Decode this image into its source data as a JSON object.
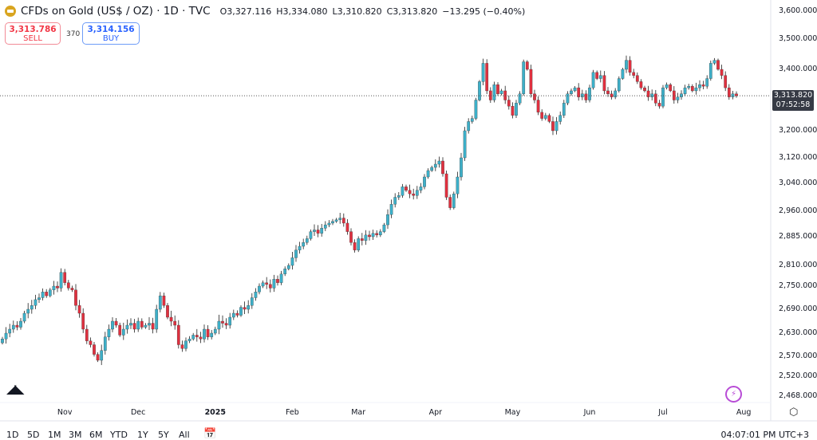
{
  "header": {
    "title": "CFDs on Gold (US$ / OZ) · 1D · TVC",
    "open": "O3,327.116",
    "high": "H3,334.080",
    "low": "L3,310.820",
    "close": "C3,313.820",
    "change": "−13.295 (−0.40%)"
  },
  "trade": {
    "sell_price": "3,313.786",
    "sell_label": "SELL",
    "spread": "370",
    "buy_price": "3,314.156",
    "buy_label": "BUY"
  },
  "current": {
    "price": "3,313.820",
    "countdown": "07:52:58"
  },
  "ranges": [
    "1D",
    "5D",
    "1M",
    "3M",
    "6M",
    "YTD",
    "1Y",
    "5Y",
    "All"
  ],
  "clock": "04:07:01 PM UTC+3",
  "logo_text": "TV",
  "colors": {
    "up": "#3db0c9",
    "down": "#e0303f"
  },
  "chart_data": {
    "type": "candlestick",
    "title": "CFDs on Gold (US$ / OZ) · 1D · TVC",
    "yticks": [
      "3,600.000",
      "3,500.000",
      "3,400.000",
      "3,200.000",
      "3,120.000",
      "3,040.000",
      "2,960.000",
      "2,885.000",
      "2,810.000",
      "2,750.000",
      "2,690.000",
      "2,630.000",
      "2,570.000",
      "2,520.000",
      "2,468.000"
    ],
    "ytick_values": [
      3600,
      3500,
      3400,
      3200,
      3120,
      3040,
      2960,
      2885,
      2810,
      2750,
      2690,
      2630,
      2570,
      2520,
      2468
    ],
    "xticks": [
      "Nov",
      "Dec",
      "2025",
      "Feb",
      "Mar",
      "Apr",
      "May",
      "Jun",
      "Jul",
      "Aug"
    ],
    "xtick_index": [
      17,
      37,
      58,
      79,
      97,
      118,
      139,
      160,
      180,
      202
    ],
    "first_open": 2605,
    "closes": [
      2615,
      2630,
      2640,
      2650,
      2645,
      2660,
      2680,
      2690,
      2700,
      2715,
      2720,
      2735,
      2725,
      2740,
      2750,
      2745,
      2790,
      2760,
      2745,
      2740,
      2700,
      2680,
      2640,
      2610,
      2600,
      2575,
      2560,
      2585,
      2620,
      2640,
      2660,
      2650,
      2625,
      2640,
      2650,
      2655,
      2640,
      2660,
      2645,
      2650,
      2655,
      2640,
      2690,
      2725,
      2700,
      2670,
      2660,
      2650,
      2600,
      2590,
      2610,
      2615,
      2625,
      2620,
      2615,
      2640,
      2620,
      2630,
      2640,
      2660,
      2655,
      2650,
      2670,
      2680,
      2675,
      2695,
      2690,
      2700,
      2720,
      2735,
      2750,
      2760,
      2755,
      2745,
      2770,
      2760,
      2785,
      2800,
      2810,
      2830,
      2850,
      2860,
      2870,
      2880,
      2900,
      2905,
      2895,
      2910,
      2920,
      2925,
      2930,
      2935,
      2940,
      2925,
      2900,
      2870,
      2850,
      2880,
      2875,
      2890,
      2885,
      2895,
      2890,
      2900,
      2920,
      2950,
      2980,
      3000,
      3005,
      3030,
      3020,
      3010,
      3005,
      3020,
      3030,
      3060,
      3080,
      3090,
      3100,
      3110,
      3070,
      3000,
      2970,
      3010,
      3060,
      3120,
      3200,
      3230,
      3240,
      3300,
      3360,
      3420,
      3330,
      3300,
      3350,
      3320,
      3330,
      3300,
      3280,
      3250,
      3290,
      3320,
      3425,
      3400,
      3320,
      3300,
      3260,
      3240,
      3250,
      3230,
      3200,
      3230,
      3250,
      3290,
      3320,
      3330,
      3340,
      3310,
      3320,
      3300,
      3340,
      3390,
      3370,
      3380,
      3330,
      3320,
      3310,
      3330,
      3370,
      3400,
      3430,
      3390,
      3380,
      3360,
      3340,
      3330,
      3310,
      3320,
      3290,
      3280,
      3340,
      3350,
      3330,
      3300,
      3310,
      3320,
      3340,
      3345,
      3330,
      3340,
      3350,
      3345,
      3370,
      3420,
      3430,
      3400,
      3380,
      3340,
      3310,
      3320,
      3313.82
    ],
    "last_price": 3313.82
  }
}
